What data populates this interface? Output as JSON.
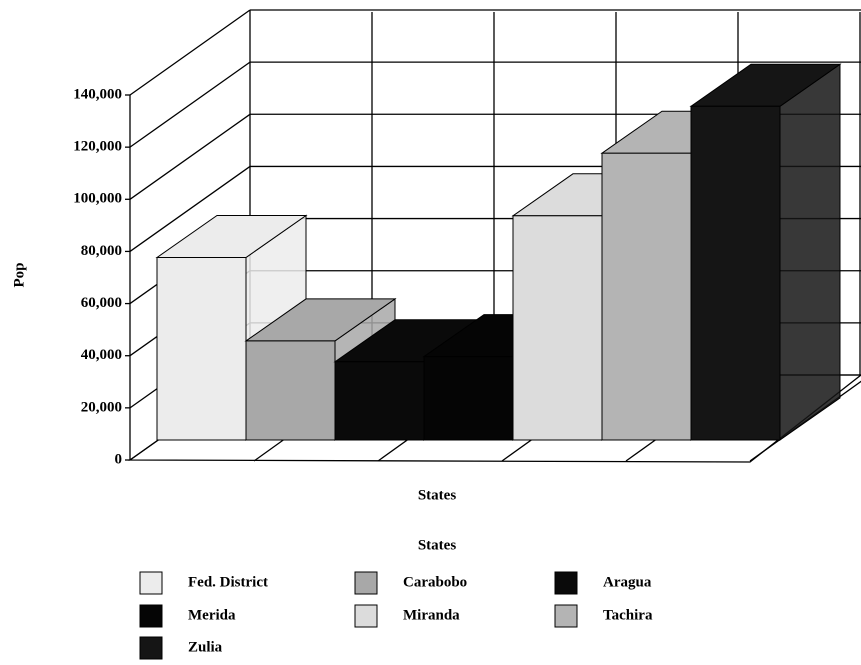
{
  "chart_data": {
    "type": "bar3d",
    "y_label": "Pop",
    "x_label": "States",
    "legend_title": "States",
    "categories": [
      "Fed. District",
      "Carabobo",
      "Aragua",
      "Merida",
      "Miranda",
      "Tachira",
      "Zulia"
    ],
    "values": [
      70000,
      38000,
      30000,
      32000,
      86000,
      110000,
      128000
    ],
    "colors": [
      "#ececec",
      "#a8a8a8",
      "#0a0a0a",
      "#050505",
      "#dcdcdc",
      "#b4b4b4",
      "#151515"
    ],
    "ylim": [
      0,
      140000
    ],
    "yticks": [
      0,
      {
        "value": 20000,
        "label": "20,000"
      },
      {
        "value": 40000,
        "label": "40,000"
      },
      {
        "value": 60000,
        "label": "60,000"
      },
      {
        "value": 80000,
        "label": "80,000"
      },
      {
        "value": 100000,
        "label": "100,000"
      },
      {
        "value": 120000,
        "label": "120,000"
      },
      {
        "value": 140000,
        "label": "140,000"
      }
    ],
    "grid": true
  }
}
